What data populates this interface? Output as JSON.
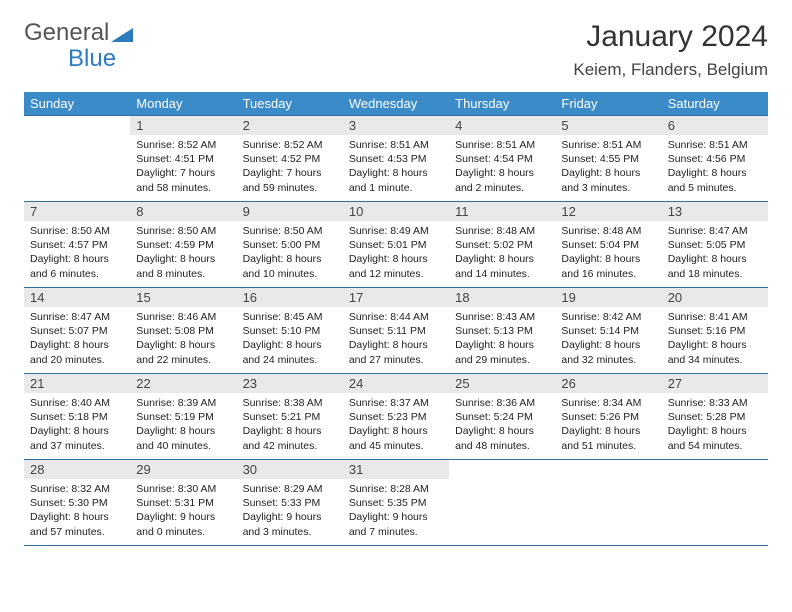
{
  "logo": {
    "text1": "General",
    "text2": "Blue"
  },
  "header": {
    "month_title": "January 2024",
    "location": "Keiem, Flanders, Belgium"
  },
  "colors": {
    "header_bg": "#3b8bc9",
    "header_text": "#ffffff",
    "daynum_bg": "#e9e9e9",
    "border": "#2c6fa0",
    "logo_gray": "#555555",
    "logo_blue": "#2c7bbf"
  },
  "typography": {
    "month_title_fontsize": 30,
    "location_fontsize": 17,
    "day_header_fontsize": 13,
    "daynum_fontsize": 13,
    "body_fontsize": 10.5
  },
  "calendar": {
    "type": "table",
    "columns": [
      "Sunday",
      "Monday",
      "Tuesday",
      "Wednesday",
      "Thursday",
      "Friday",
      "Saturday"
    ],
    "weeks": [
      [
        null,
        {
          "n": "1",
          "sr": "8:52 AM",
          "ss": "4:51 PM",
          "dl": "7 hours and 58 minutes."
        },
        {
          "n": "2",
          "sr": "8:52 AM",
          "ss": "4:52 PM",
          "dl": "7 hours and 59 minutes."
        },
        {
          "n": "3",
          "sr": "8:51 AM",
          "ss": "4:53 PM",
          "dl": "8 hours and 1 minute."
        },
        {
          "n": "4",
          "sr": "8:51 AM",
          "ss": "4:54 PM",
          "dl": "8 hours and 2 minutes."
        },
        {
          "n": "5",
          "sr": "8:51 AM",
          "ss": "4:55 PM",
          "dl": "8 hours and 3 minutes."
        },
        {
          "n": "6",
          "sr": "8:51 AM",
          "ss": "4:56 PM",
          "dl": "8 hours and 5 minutes."
        }
      ],
      [
        {
          "n": "7",
          "sr": "8:50 AM",
          "ss": "4:57 PM",
          "dl": "8 hours and 6 minutes."
        },
        {
          "n": "8",
          "sr": "8:50 AM",
          "ss": "4:59 PM",
          "dl": "8 hours and 8 minutes."
        },
        {
          "n": "9",
          "sr": "8:50 AM",
          "ss": "5:00 PM",
          "dl": "8 hours and 10 minutes."
        },
        {
          "n": "10",
          "sr": "8:49 AM",
          "ss": "5:01 PM",
          "dl": "8 hours and 12 minutes."
        },
        {
          "n": "11",
          "sr": "8:48 AM",
          "ss": "5:02 PM",
          "dl": "8 hours and 14 minutes."
        },
        {
          "n": "12",
          "sr": "8:48 AM",
          "ss": "5:04 PM",
          "dl": "8 hours and 16 minutes."
        },
        {
          "n": "13",
          "sr": "8:47 AM",
          "ss": "5:05 PM",
          "dl": "8 hours and 18 minutes."
        }
      ],
      [
        {
          "n": "14",
          "sr": "8:47 AM",
          "ss": "5:07 PM",
          "dl": "8 hours and 20 minutes."
        },
        {
          "n": "15",
          "sr": "8:46 AM",
          "ss": "5:08 PM",
          "dl": "8 hours and 22 minutes."
        },
        {
          "n": "16",
          "sr": "8:45 AM",
          "ss": "5:10 PM",
          "dl": "8 hours and 24 minutes."
        },
        {
          "n": "17",
          "sr": "8:44 AM",
          "ss": "5:11 PM",
          "dl": "8 hours and 27 minutes."
        },
        {
          "n": "18",
          "sr": "8:43 AM",
          "ss": "5:13 PM",
          "dl": "8 hours and 29 minutes."
        },
        {
          "n": "19",
          "sr": "8:42 AM",
          "ss": "5:14 PM",
          "dl": "8 hours and 32 minutes."
        },
        {
          "n": "20",
          "sr": "8:41 AM",
          "ss": "5:16 PM",
          "dl": "8 hours and 34 minutes."
        }
      ],
      [
        {
          "n": "21",
          "sr": "8:40 AM",
          "ss": "5:18 PM",
          "dl": "8 hours and 37 minutes."
        },
        {
          "n": "22",
          "sr": "8:39 AM",
          "ss": "5:19 PM",
          "dl": "8 hours and 40 minutes."
        },
        {
          "n": "23",
          "sr": "8:38 AM",
          "ss": "5:21 PM",
          "dl": "8 hours and 42 minutes."
        },
        {
          "n": "24",
          "sr": "8:37 AM",
          "ss": "5:23 PM",
          "dl": "8 hours and 45 minutes."
        },
        {
          "n": "25",
          "sr": "8:36 AM",
          "ss": "5:24 PM",
          "dl": "8 hours and 48 minutes."
        },
        {
          "n": "26",
          "sr": "8:34 AM",
          "ss": "5:26 PM",
          "dl": "8 hours and 51 minutes."
        },
        {
          "n": "27",
          "sr": "8:33 AM",
          "ss": "5:28 PM",
          "dl": "8 hours and 54 minutes."
        }
      ],
      [
        {
          "n": "28",
          "sr": "8:32 AM",
          "ss": "5:30 PM",
          "dl": "8 hours and 57 minutes."
        },
        {
          "n": "29",
          "sr": "8:30 AM",
          "ss": "5:31 PM",
          "dl": "9 hours and 0 minutes."
        },
        {
          "n": "30",
          "sr": "8:29 AM",
          "ss": "5:33 PM",
          "dl": "9 hours and 3 minutes."
        },
        {
          "n": "31",
          "sr": "8:28 AM",
          "ss": "5:35 PM",
          "dl": "9 hours and 7 minutes."
        },
        null,
        null,
        null
      ]
    ],
    "labels": {
      "sunrise_prefix": "Sunrise: ",
      "sunset_prefix": "Sunset: ",
      "daylight_prefix": "Daylight: "
    }
  }
}
